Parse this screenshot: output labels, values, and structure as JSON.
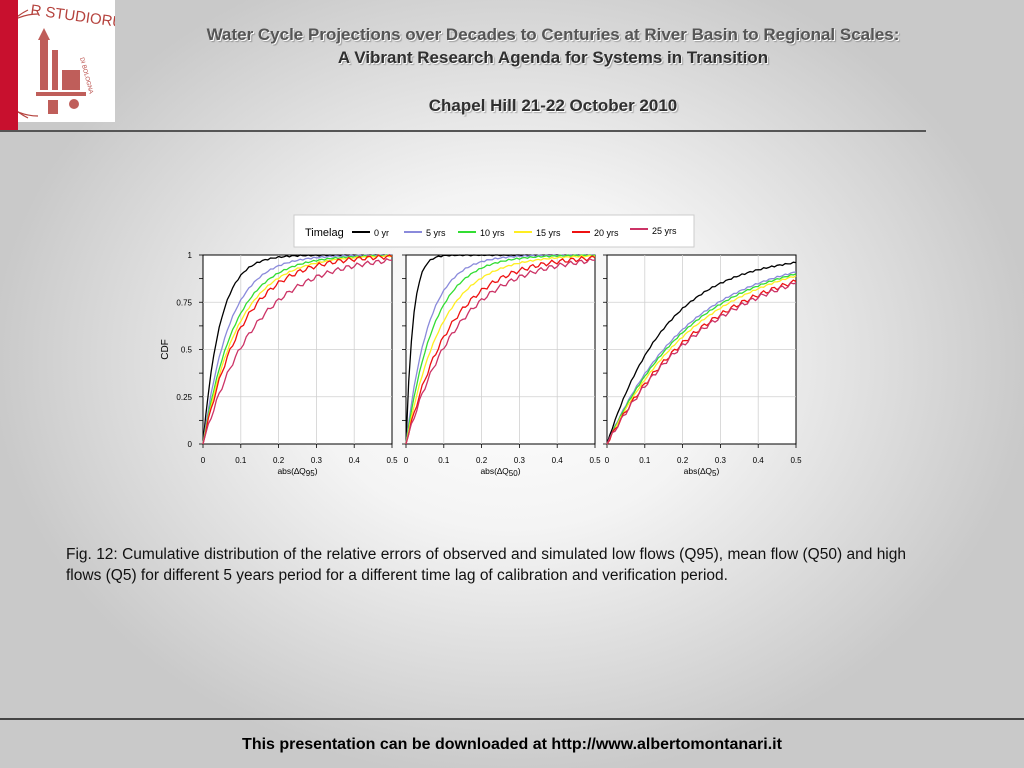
{
  "header": {
    "title_line1": "Water Cycle Projections over Decades to Centuries at River Basin to Regional Scales:",
    "title_line2": "A Vibrant Research Agenda for Systems in Transition",
    "event": "Chapel Hill 21-22 October 2010"
  },
  "logo": {
    "text": "R STUDIORUM",
    "sub": "DI BOLOGNA"
  },
  "colors": {
    "accent_red": "#c8102e"
  },
  "chart_data": {
    "type": "line",
    "legend_title": "Timelag",
    "series": [
      {
        "name": "0 yr",
        "color": "#000000"
      },
      {
        "name": "5 yrs",
        "color": "#8a8adb"
      },
      {
        "name": "10 yrs",
        "color": "#33dd33"
      },
      {
        "name": "15 yrs",
        "color": "#ffee22"
      },
      {
        "name": "20 yrs",
        "color": "#ee1111"
      },
      {
        "name": "25 yrs",
        "color": "#cc3366"
      }
    ],
    "ylabel": "CDF",
    "yticks": [
      "0",
      "0.25",
      "0.5",
      "0.75",
      "1"
    ],
    "xticks": [
      "0",
      "0.1",
      "0.2",
      "0.3",
      "0.4",
      "0.5"
    ],
    "ylim": [
      0,
      1
    ],
    "xlim": [
      0,
      0.5
    ],
    "panels": [
      {
        "xlabel_main": "abs(∆Q",
        "xlabel_sub": "95",
        "xlabel_end": ")",
        "scales": [
          0.045,
          0.07,
          0.085,
          0.095,
          0.105,
          0.14
        ],
        "ends": [
          1,
          1,
          1,
          1,
          1,
          1
        ]
      },
      {
        "xlabel_main": "abs(∆Q",
        "xlabel_sub": "50",
        "xlabel_end": ")",
        "scales": [
          0.018,
          0.06,
          0.075,
          0.095,
          0.12,
          0.14
        ],
        "ends": [
          1,
          1,
          1,
          1,
          1,
          1
        ]
      },
      {
        "xlabel_main": "abs(∆Q",
        "xlabel_sub": "5",
        "xlabel_end": ")",
        "scales": [
          0.16,
          0.22,
          0.23,
          0.25,
          0.27,
          0.28
        ],
        "ends": [
          0.96,
          0.91,
          0.9,
          0.89,
          0.86,
          0.85
        ]
      }
    ]
  },
  "caption": "Fig. 12: Cumulative distribution of the relative errors of observed and simulated low flows (Q95), mean flow (Q50) and high flows (Q5) for different 5 years period for a different time lag of calibration and verification period.",
  "footer": "This presentation can be downloaded at http://www.albertomontanari.it"
}
